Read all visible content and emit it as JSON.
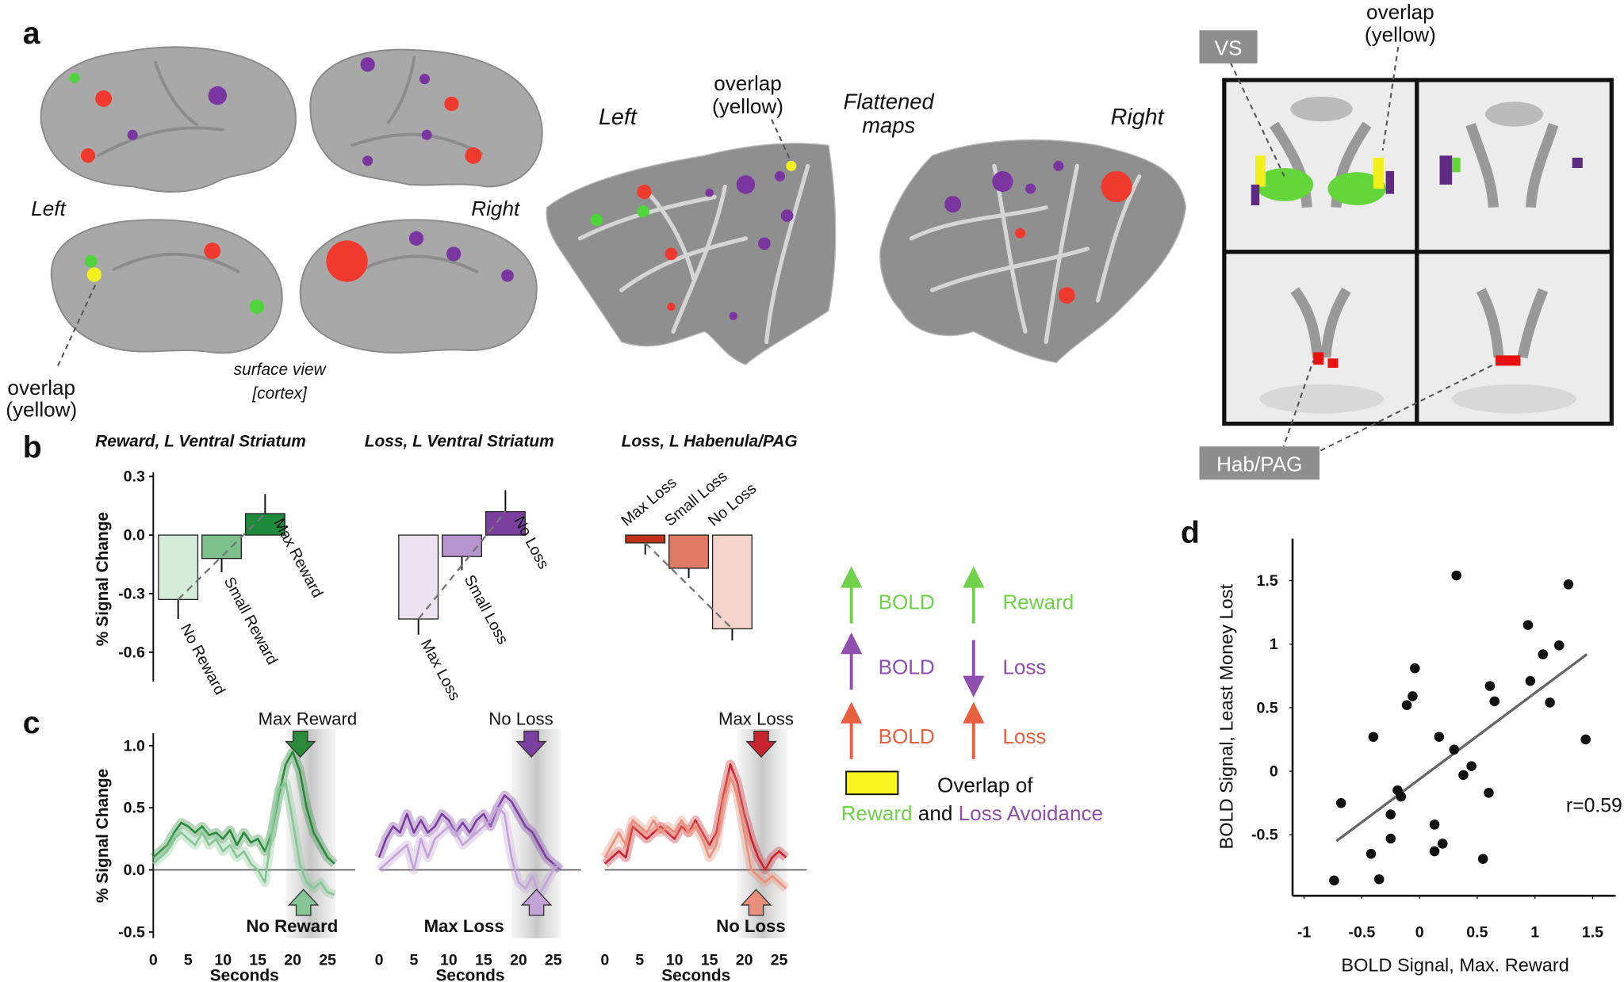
{
  "panel_labels": [
    "a",
    "b",
    "c",
    "d"
  ],
  "panel_a": {
    "surface": {
      "left": "Left",
      "right": "Right",
      "overlap": [
        "overlap",
        "(yellow)"
      ],
      "caption": [
        "surface view",
        "[cortex]"
      ]
    },
    "flattened": {
      "left": "Left",
      "title": [
        "Flattened",
        "maps"
      ],
      "right": "Right",
      "overlap": [
        "overlap",
        "(yellow)"
      ]
    },
    "slices": {
      "vs": "VS",
      "overlap": [
        "overlap",
        "(yellow)"
      ],
      "hab": "Hab/PAG"
    }
  },
  "legend": {
    "rows": [
      {
        "left": "BOLD",
        "right": "Reward"
      },
      {
        "left": "BOLD",
        "right": "Loss"
      },
      {
        "left": "BOLD",
        "right": "Loss"
      }
    ],
    "overlap": [
      "Overlap of",
      "Reward",
      "and",
      "Loss Avoidance"
    ]
  },
  "chart_data": [
    {
      "type": "bar",
      "title": "Reward,  L Ventral Striatum",
      "y_label": "% Signal Change",
      "categories": [
        "No Reward",
        "Small Reward",
        "Max Reward"
      ],
      "values": [
        -0.33,
        -0.12,
        0.11
      ],
      "errors": [
        0.1,
        0.07,
        0.1
      ],
      "colors": [
        "#d6ecdb",
        "#7cc08c",
        "#1e8a3c"
      ],
      "ylim": [
        -0.75,
        0.3
      ],
      "yticks": [
        0.3,
        {
          "value": 0,
          "label": "0.0"
        },
        -0.3,
        -0.6
      ]
    },
    {
      "type": "bar",
      "title": "Loss, L Ventral Striatum",
      "categories": [
        "Max Loss",
        "Small Loss",
        "No Loss"
      ],
      "values": [
        -0.43,
        -0.11,
        0.12
      ],
      "errors": [
        0.08,
        0.07,
        0.11
      ],
      "colors": [
        "#ece3f1",
        "#b895cf",
        "#7b3fa0"
      ],
      "ylim": [
        -0.75,
        0.3
      ]
    },
    {
      "type": "bar",
      "title": "Loss, L  Habenula/PAG",
      "categories": [
        "Max Loss",
        "Small Loss",
        "No Loss"
      ],
      "values": [
        -0.04,
        -0.17,
        -0.48
      ],
      "errors": [
        0.06,
        0.05,
        0.06
      ],
      "colors": [
        "#c0311c",
        "#e07a65",
        "#f4d3cc"
      ],
      "ylim": [
        -0.75,
        0.3
      ]
    },
    {
      "type": "line",
      "y_label": "% Signal Change",
      "x_label": "Seconds",
      "x": [
        0,
        1,
        2,
        3,
        4,
        5,
        6,
        7,
        8,
        9,
        10,
        11,
        12,
        13,
        14,
        15,
        16,
        17,
        18,
        19,
        20,
        21,
        22,
        23,
        24,
        25,
        26
      ],
      "xlim": [
        0,
        26
      ],
      "xticks": [
        0,
        5,
        10,
        15,
        20,
        25
      ],
      "ylim": [
        -0.55,
        1.1
      ],
      "yticks": [
        {
          "value": 1,
          "label": "1.0"
        },
        0.5,
        {
          "value": 0,
          "label": "0.0"
        },
        -0.5
      ],
      "series": [
        {
          "name": "Max Reward",
          "color": "#2a8a3a",
          "values": [
            0.1,
            0.15,
            0.2,
            0.3,
            0.38,
            0.35,
            0.3,
            0.35,
            0.28,
            0.3,
            0.25,
            0.32,
            0.2,
            0.3,
            0.22,
            0.25,
            0.15,
            0.3,
            0.6,
            0.85,
            0.95,
            0.8,
            0.5,
            0.3,
            0.2,
            0.1,
            0.05
          ]
        },
        {
          "name": "No Reward",
          "color": "#86c595",
          "values": [
            0.05,
            0.1,
            0.15,
            0.25,
            0.3,
            0.25,
            0.2,
            0.3,
            0.2,
            0.25,
            0.15,
            0.2,
            0.1,
            0.15,
            0.05,
            0,
            -0.1,
            0.3,
            0.65,
            0.7,
            0.4,
            0.05,
            -0.1,
            -0.15,
            -0.1,
            -0.18,
            -0.2
          ]
        }
      ]
    },
    {
      "type": "line",
      "x_label": "Seconds",
      "x": [
        0,
        1,
        2,
        3,
        4,
        5,
        6,
        7,
        8,
        9,
        10,
        11,
        12,
        13,
        14,
        15,
        16,
        17,
        18,
        19,
        20,
        21,
        22,
        23,
        24,
        25,
        26
      ],
      "xlim": [
        0,
        26
      ],
      "xticks": [
        0,
        5,
        10,
        15,
        20,
        25
      ],
      "ylim": [
        -0.55,
        1.1
      ],
      "series": [
        {
          "name": "No Loss",
          "color": "#7a3fa0",
          "values": [
            0.1,
            0.25,
            0.35,
            0.3,
            0.45,
            0.3,
            0.4,
            0.3,
            0.35,
            0.45,
            0.4,
            0.3,
            0.38,
            0.3,
            0.4,
            0.45,
            0.35,
            0.5,
            0.6,
            0.55,
            0.45,
            0.35,
            0.3,
            0.2,
            0.1,
            0.05,
            0
          ]
        },
        {
          "name": "Max Loss",
          "color": "#c2a3d6",
          "values": [
            0,
            0.05,
            0.1,
            0.15,
            0.2,
            0,
            0.25,
            0.1,
            0.25,
            0.3,
            0.35,
            0.3,
            0.2,
            0.25,
            0.3,
            0.35,
            0.4,
            0.5,
            0.45,
            0.1,
            -0.1,
            -0.15,
            -0.05,
            -0.2,
            -0.1,
            0,
            0.05
          ]
        }
      ]
    },
    {
      "type": "line",
      "x_label": "Seconds",
      "x": [
        0,
        1,
        2,
        3,
        4,
        5,
        6,
        7,
        8,
        9,
        10,
        11,
        12,
        13,
        14,
        15,
        16,
        17,
        18,
        19,
        20,
        21,
        22,
        23,
        24,
        25,
        26
      ],
      "xlim": [
        0,
        26
      ],
      "xticks": [
        0,
        5,
        10,
        15,
        20,
        25
      ],
      "ylim": [
        -0.55,
        1.1
      ],
      "series": [
        {
          "name": "Max Loss",
          "color": "#c8242f",
          "values": [
            0.05,
            0.1,
            0.15,
            0.1,
            0.35,
            0.3,
            0.25,
            0.3,
            0.35,
            0.3,
            0.25,
            0.35,
            0.3,
            0.4,
            0.3,
            0.2,
            0.3,
            0.6,
            0.85,
            0.7,
            0.45,
            0.25,
            0.1,
            0,
            0.1,
            0.15,
            0.1
          ]
        },
        {
          "name": "No Loss",
          "color": "#e8907c",
          "values": [
            0.1,
            0.2,
            0.3,
            0.2,
            0.4,
            0.35,
            0.3,
            0.4,
            0.3,
            0.35,
            0.3,
            0.4,
            0.3,
            0.35,
            0.25,
            0.1,
            0.2,
            0.55,
            0.75,
            0.6,
            0.3,
            0,
            -0.05,
            -0.1,
            -0.05,
            -0.1,
            -0.15
          ]
        }
      ]
    },
    {
      "type": "scatter",
      "x_label": "BOLD Signal, Max. Reward",
      "y_label": "BOLD Signal, Least Money Lost",
      "annotation": "r=0.59",
      "color": "#111111",
      "x": [
        -0.74,
        -0.68,
        -0.42,
        -0.4,
        -0.35,
        -0.25,
        -0.25,
        -0.19,
        -0.16,
        -0.11,
        -0.06,
        -0.04,
        0.13,
        0.13,
        0.17,
        0.2,
        0.3,
        0.32,
        0.38,
        0.45,
        0.55,
        0.6,
        0.61,
        0.65,
        0.96,
        0.94,
        1.07,
        1.13,
        1.21,
        1.29,
        1.44
      ],
      "values": [
        -0.86,
        -0.25,
        -0.65,
        0.27,
        -0.85,
        -0.53,
        -0.34,
        -0.15,
        -0.2,
        0.52,
        0.59,
        0.81,
        -0.42,
        -0.63,
        0.27,
        -0.57,
        0.17,
        1.54,
        -0.03,
        0.04,
        -0.69,
        -0.17,
        0.67,
        0.55,
        0.71,
        1.15,
        0.92,
        0.54,
        0.99,
        1.47,
        0.25
      ],
      "fit": {
        "x": [
          -0.72,
          1.45
        ],
        "values": [
          -0.55,
          0.92
        ]
      },
      "xlim": [
        -1.1,
        1.7
      ],
      "ylim": [
        -0.98,
        1.83
      ],
      "xticks": [
        -1,
        -0.5,
        0,
        0.5,
        1,
        1.5
      ],
      "yticks": [
        -0.5,
        0,
        0.5,
        1,
        1.5
      ]
    }
  ]
}
